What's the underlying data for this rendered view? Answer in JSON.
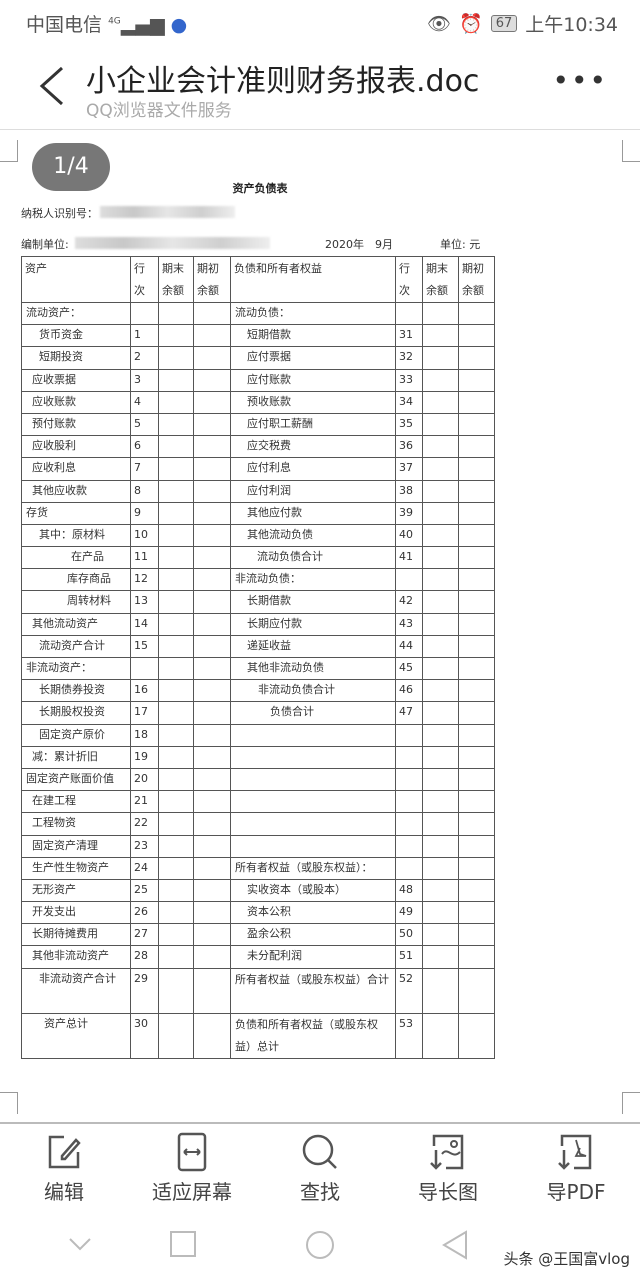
{
  "status": {
    "carrier": "中国电信",
    "network": "4G",
    "battery": "67",
    "time": "上午10:34"
  },
  "header": {
    "title": "小企业会计准则财务报表.doc",
    "subtitle": "QQ浏览器文件服务"
  },
  "pager": "1/4",
  "document": {
    "title": "资产负债表",
    "taxpayer_label": "纳税人识别号：",
    "unit_label": "编制单位:",
    "period": "2020年　9月",
    "currency": "单位: 元",
    "headers": [
      "资产",
      "行次",
      "期末余额",
      "期初余额",
      "负债和所有者权益",
      "行次",
      "期末余额",
      "期初余额"
    ],
    "rows": [
      [
        "流动资产：",
        "",
        "流动负债：",
        ""
      ],
      [
        "货币资金",
        "1",
        "短期借款",
        "31"
      ],
      [
        "短期投资",
        "2",
        "应付票据",
        "32"
      ],
      [
        "应收票据",
        "3",
        "应付账款",
        "33"
      ],
      [
        "应收账款",
        "4",
        "预收账款",
        "34"
      ],
      [
        "预付账款",
        "5",
        "应付职工薪酬",
        "35"
      ],
      [
        "应收股利",
        "6",
        "应交税费",
        "36"
      ],
      [
        "应收利息",
        "7",
        "应付利息",
        "37"
      ],
      [
        "其他应收款",
        "8",
        "应付利润",
        "38"
      ],
      [
        "存货",
        "9",
        "其他应付款",
        "39"
      ],
      [
        "其中：原材料",
        "10",
        "其他流动负债",
        "40"
      ],
      [
        "在产品",
        "11",
        "流动负债合计",
        "41"
      ],
      [
        "库存商品",
        "12",
        "非流动负债：",
        ""
      ],
      [
        "周转材料",
        "13",
        "长期借款",
        "42"
      ],
      [
        "其他流动资产",
        "14",
        "长期应付款",
        "43"
      ],
      [
        "流动资产合计",
        "15",
        "递延收益",
        "44"
      ],
      [
        "非流动资产：",
        "",
        "其他非流动负债",
        "45"
      ],
      [
        "长期债券投资",
        "16",
        "非流动负债合计",
        "46"
      ],
      [
        "长期股权投资",
        "17",
        "负债合计",
        "47"
      ],
      [
        "固定资产原价",
        "18",
        "",
        ""
      ],
      [
        "减：累计折旧",
        "19",
        "",
        ""
      ],
      [
        "固定资产账面价值",
        "20",
        "",
        ""
      ],
      [
        "在建工程",
        "21",
        "",
        ""
      ],
      [
        "工程物资",
        "22",
        "",
        ""
      ],
      [
        "固定资产清理",
        "23",
        "",
        ""
      ],
      [
        "生产性生物资产",
        "24",
        "所有者权益（或股东权益）：",
        ""
      ],
      [
        "无形资产",
        "25",
        "实收资本（或股本）",
        "48"
      ],
      [
        "开发支出",
        "26",
        "资本公积",
        "49"
      ],
      [
        "长期待摊费用",
        "27",
        "盈余公积",
        "50"
      ],
      [
        "其他非流动资产",
        "28",
        "未分配利润",
        "51"
      ],
      [
        "非流动资产合计",
        "29",
        "所有者权益（或股东权益）合计",
        "52"
      ],
      [
        "资产总计",
        "30",
        "负债和所有者权益（或股东权益）总计",
        "53"
      ]
    ]
  },
  "toolbar": [
    {
      "label": "编辑",
      "icon": "edit-icon"
    },
    {
      "label": "适应屏幕",
      "icon": "fit-screen-icon"
    },
    {
      "label": "查找",
      "icon": "search-icon"
    },
    {
      "label": "导长图",
      "icon": "export-long-image-icon"
    },
    {
      "label": "导PDF",
      "icon": "export-pdf-icon"
    }
  ],
  "watermark": "头条 @王国富vlog"
}
